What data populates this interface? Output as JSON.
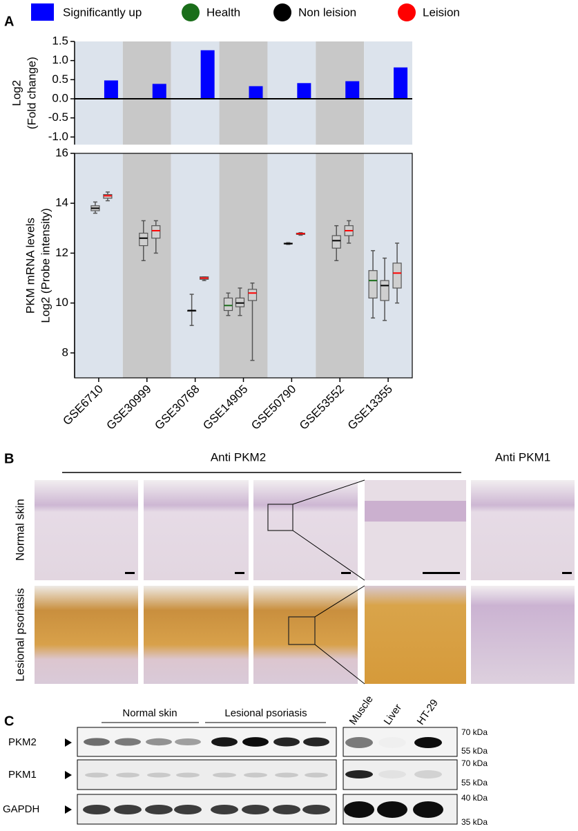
{
  "panel_a": {
    "label": "A"
  },
  "chart_data": [
    {
      "type": "bar",
      "ylabel_lines": [
        "Log2",
        "(Fold change)"
      ],
      "series": [
        {
          "name": "Significantly up",
          "color": "#0000ff",
          "values": [
            0.48,
            0.39,
            1.27,
            0.33,
            0.41,
            0.46,
            0.82
          ]
        }
      ],
      "ylim": [
        -1.2,
        1.5
      ],
      "yticks": [
        1.5,
        {
          "value": 1,
          "label": "1.0"
        },
        0.5,
        {
          "value": 0,
          "label": "0.0"
        },
        -0.5,
        {
          "value": -1,
          "label": "-1.0"
        }
      ]
    },
    {
      "type": "box",
      "ylabel_lines": [
        "PKM mRNA levels",
        "Log2 (Probe intensity)"
      ],
      "categories": [
        "GSE6710",
        "GSE30999",
        "GSE30768",
        "GSE14905",
        "GSE50790",
        "GSE53552",
        "GSE13355"
      ],
      "series": [
        {
          "name": "Health",
          "color": "#1a6e1a",
          "boxes": [
            null,
            null,
            null,
            {
              "min": 9.5,
              "q1": 9.7,
              "median": 9.9,
              "q3": 10.2,
              "max": 10.4
            },
            null,
            null,
            {
              "min": 9.4,
              "q1": 10.2,
              "median": 10.9,
              "q3": 11.3,
              "max": 12.1
            }
          ]
        },
        {
          "name": "Non leision",
          "color": "#000000",
          "boxes": [
            {
              "min": 13.6,
              "q1": 13.7,
              "median": 13.8,
              "q3": 13.9,
              "max": 14.05
            },
            {
              "min": 11.7,
              "q1": 12.3,
              "median": 12.6,
              "q3": 12.8,
              "max": 13.3
            },
            {
              "min": 9.1,
              "q1": 9.7,
              "median": 9.7,
              "q3": 9.7,
              "max": 10.35
            },
            {
              "min": 9.5,
              "q1": 9.85,
              "median": 10.0,
              "q3": 10.2,
              "max": 10.6
            },
            {
              "min": 12.35,
              "q1": 12.37,
              "median": 12.38,
              "q3": 12.4,
              "max": 12.42
            },
            {
              "min": 11.7,
              "q1": 12.2,
              "median": 12.5,
              "q3": 12.7,
              "max": 13.1
            },
            {
              "min": 9.3,
              "q1": 10.1,
              "median": 10.7,
              "q3": 10.9,
              "max": 11.8
            }
          ]
        },
        {
          "name": "Leision",
          "color": "#ff0000",
          "boxes": [
            {
              "min": 14.1,
              "q1": 14.2,
              "median": 14.3,
              "q3": 14.35,
              "max": 14.45
            },
            {
              "min": 12.0,
              "q1": 12.6,
              "median": 12.9,
              "q3": 13.1,
              "max": 13.3
            },
            {
              "min": 10.9,
              "q1": 10.95,
              "median": 11.0,
              "q3": 11.05,
              "max": 11.05
            },
            {
              "min": 7.7,
              "q1": 10.1,
              "median": 10.4,
              "q3": 10.55,
              "max": 10.8
            },
            {
              "min": 12.72,
              "q1": 12.75,
              "median": 12.78,
              "q3": 12.8,
              "max": 12.82
            },
            {
              "min": 12.4,
              "q1": 12.7,
              "median": 12.9,
              "q3": 13.1,
              "max": 13.3
            },
            {
              "min": 10.0,
              "q1": 10.6,
              "median": 11.2,
              "q3": 11.6,
              "max": 12.4
            }
          ]
        }
      ],
      "ylim": [
        7,
        16
      ],
      "yticks": [
        8,
        10,
        12,
        14,
        16
      ]
    }
  ],
  "panel_b": {
    "label": "B",
    "headers": [
      "Anti PKM2",
      "Anti PKM1"
    ],
    "rows": [
      "Normal skin",
      "Lesional psoriasis"
    ]
  },
  "panel_c": {
    "label": "C",
    "groups": [
      "Normal skin",
      "Lesional psoriasis"
    ],
    "lanes": [
      "Muscle",
      "Liver",
      "HT-29"
    ],
    "proteins": [
      "PKM2",
      "PKM1",
      "GAPDH"
    ],
    "markers": [
      "70 kDa",
      "55 kDa",
      "70 kDa",
      "55 kDa",
      "40 kDa",
      "35 kDa"
    ]
  }
}
